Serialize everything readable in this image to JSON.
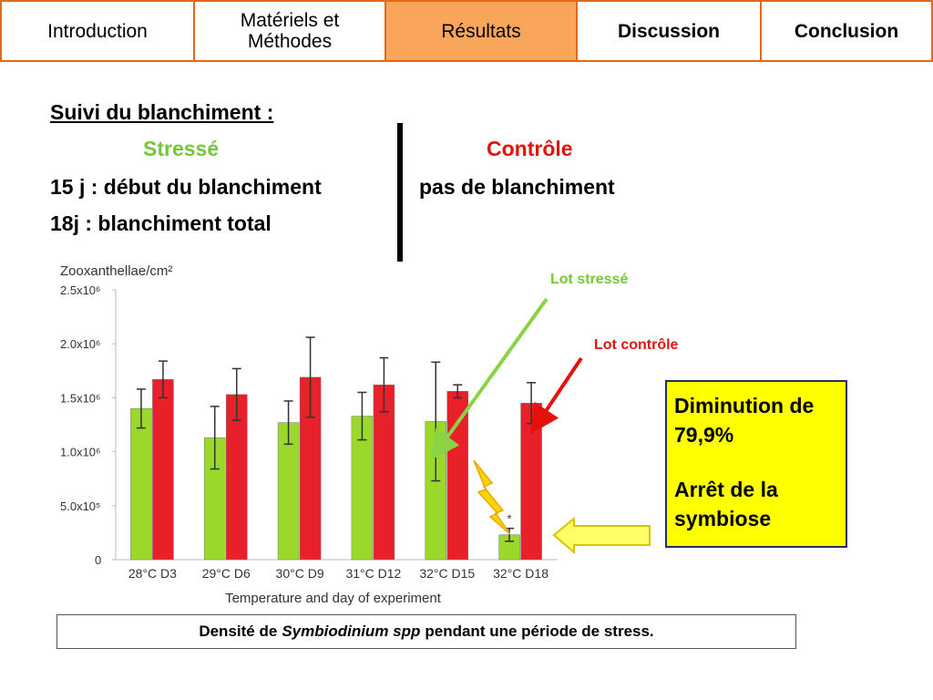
{
  "nav": {
    "tabs": [
      {
        "label": "Introduction",
        "active": false
      },
      {
        "label": "Matériels et\nMéthodes",
        "active": false
      },
      {
        "label": "Résultats",
        "active": true
      },
      {
        "label": "Discussion",
        "active": false
      },
      {
        "label": "Conclusion",
        "active": false
      }
    ]
  },
  "section": {
    "title": "Suivi du blanchiment :",
    "stressed_label": "Stressé",
    "control_label": "Contrôle",
    "line1_left": "15 j : début du blanchiment",
    "line1_right": "pas de blanchiment",
    "line2_left": "18j : blanchiment total"
  },
  "annotations": {
    "lot_stresse": "Lot stressé",
    "lot_controle": "Lot contrôle",
    "box_line1": "Diminution de 79,9%",
    "box_line2": "Arrêt de la symbiose"
  },
  "caption": {
    "prefix": "Densité de",
    "species": "Symbiodinium spp",
    "suffix": "pendant une période de stress."
  },
  "colors": {
    "tab_border": "#e06a1a",
    "tab_active": "#f9a65a",
    "stressed": "#77c63a",
    "control": "#e3120b",
    "highlight_box": "#ffff00"
  },
  "chart_data": {
    "type": "bar",
    "ylabel": "Zooxanthellae/cm²",
    "xlabel": "Temperature and day of experiment",
    "categories": [
      "28°C D3",
      "29°C D6",
      "30°C D9",
      "31°C D12",
      "32°C D15",
      "32°C D18"
    ],
    "ytick_labels": [
      "0",
      "5.0x10⁵",
      "1.0x10⁶",
      "1.5x10⁶",
      "2.0x10⁶",
      "2.5x10⁶"
    ],
    "ylim": [
      0,
      2500000
    ],
    "series": [
      {
        "name": "Lot stressé",
        "color": "#9ad82c",
        "values": [
          1400000,
          1130000,
          1270000,
          1330000,
          1280000,
          230000
        ],
        "errors": [
          180000,
          290000,
          200000,
          220000,
          550000,
          60000
        ]
      },
      {
        "name": "Lot contrôle",
        "color": "#e8202a",
        "values": [
          1670000,
          1530000,
          1690000,
          1620000,
          1560000,
          1450000
        ],
        "errors": [
          170000,
          240000,
          370000,
          250000,
          60000,
          190000
        ]
      }
    ],
    "significance_marker": "*"
  }
}
